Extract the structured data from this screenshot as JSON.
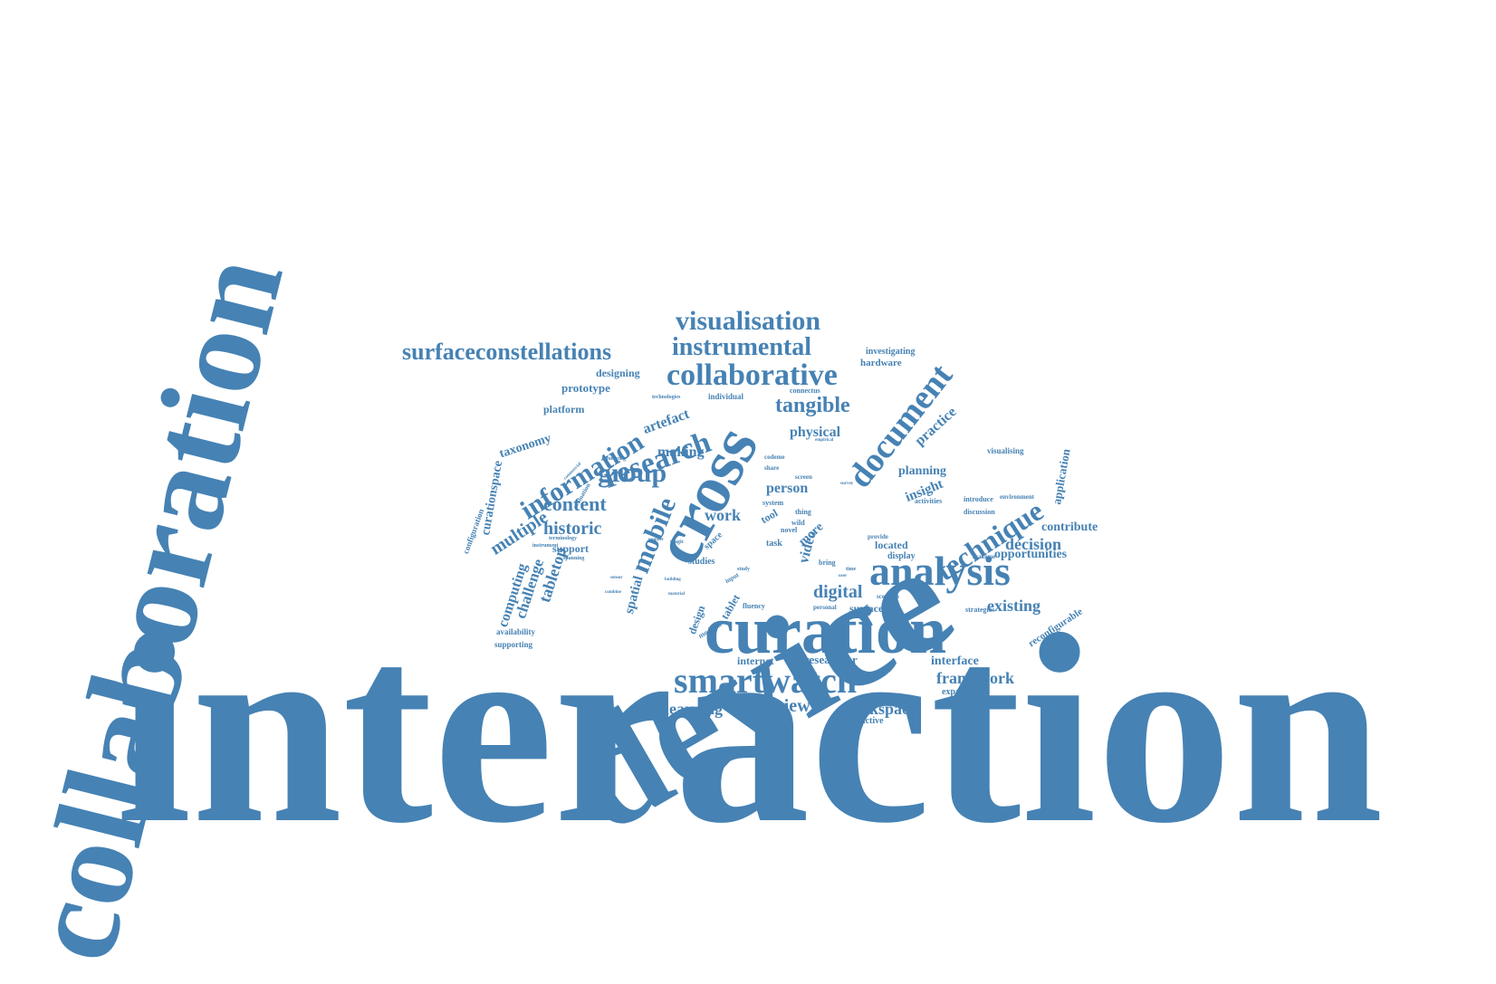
{
  "colors": {
    "word": "#4682b4",
    "background": "#ffffff"
  },
  "words": {
    "interaction": "interaction",
    "collaboration": "collaboration",
    "device": "device",
    "cross": "cross",
    "curation": "curation",
    "analysis": "analysis",
    "smartwatch": "smartwatch",
    "document": "document",
    "collaborative": "collaborative",
    "research": "research",
    "information": "information",
    "technique": "technique",
    "visualisation": "visualisation",
    "instrumental": "instrumental",
    "surfaceconstellations": "surfaceconstellations",
    "group": "group",
    "mobile": "mobile",
    "tangible": "tangible",
    "content": "content",
    "historic": "historic",
    "multiple": "multiple",
    "overview": "overview",
    "workspace": "workspace",
    "learning": "learning",
    "framework": "framework",
    "digital": "digital",
    "existing": "existing",
    "decision": "decision",
    "opportunities": "opportunities",
    "contribute": "contribute",
    "application": "application",
    "practice": "practice",
    "insight": "insight",
    "planning": "planning",
    "physical": "physical",
    "artefact": "artefact",
    "making": "making",
    "person": "person",
    "work": "work",
    "video": "video",
    "spatial": "spatial",
    "tabletop": "tabletop",
    "challenge": "challenge",
    "computing": "computing",
    "curationspace": "curationspace",
    "taxonomy": "taxonomy",
    "platform": "platform",
    "prototype": "prototype",
    "designing": "designing",
    "hardware": "hardware",
    "investigating": "investigating",
    "interface": "interface",
    "researcher": "researcher",
    "internet": "internet",
    "reconfigurable": "reconfigurable",
    "expanding": "expanding",
    "interactive": "interactive",
    "understanding": "understanding",
    "supporting": "supporting",
    "availability": "availability",
    "configuration": "configuration",
    "support": "support",
    "located": "located",
    "display": "display",
    "surface": "surface",
    "tablet": "tablet",
    "design": "design",
    "studies": "studies",
    "space": "space",
    "task": "task",
    "more": "more",
    "tool": "tool",
    "visualising": "visualising",
    "discussion": "discussion",
    "introduce": "introduce",
    "environment": "environment",
    "activities": "activities",
    "strategies": "strategies",
    "scenario": "scenario",
    "provide": "provide",
    "makeme": "makeme",
    "bring": "bring",
    "wild": "wild",
    "thing": "thing",
    "novel": "novel",
    "system": "system",
    "screen": "screen",
    "share": "share",
    "codeme": "codeme",
    "individual": "individual",
    "connectus": "connectus",
    "technologies": "technologies",
    "terminology": "terminology",
    "evaluation": "evaluation",
    "querying": "querying",
    "instrument": "instrument",
    "spanning": "spanning",
    "fluency": "fluency",
    "modular": "modular",
    "personal": "personal",
    "input": "input",
    "study": "study",
    "magic": "magic",
    "number": "number",
    "time": "time",
    "user": "user",
    "empirical": "empirical",
    "survey": "survey",
    "commercial": "commercial",
    "sensor": "sensor",
    "combine": "combine",
    "material": "material",
    "building": "building"
  }
}
